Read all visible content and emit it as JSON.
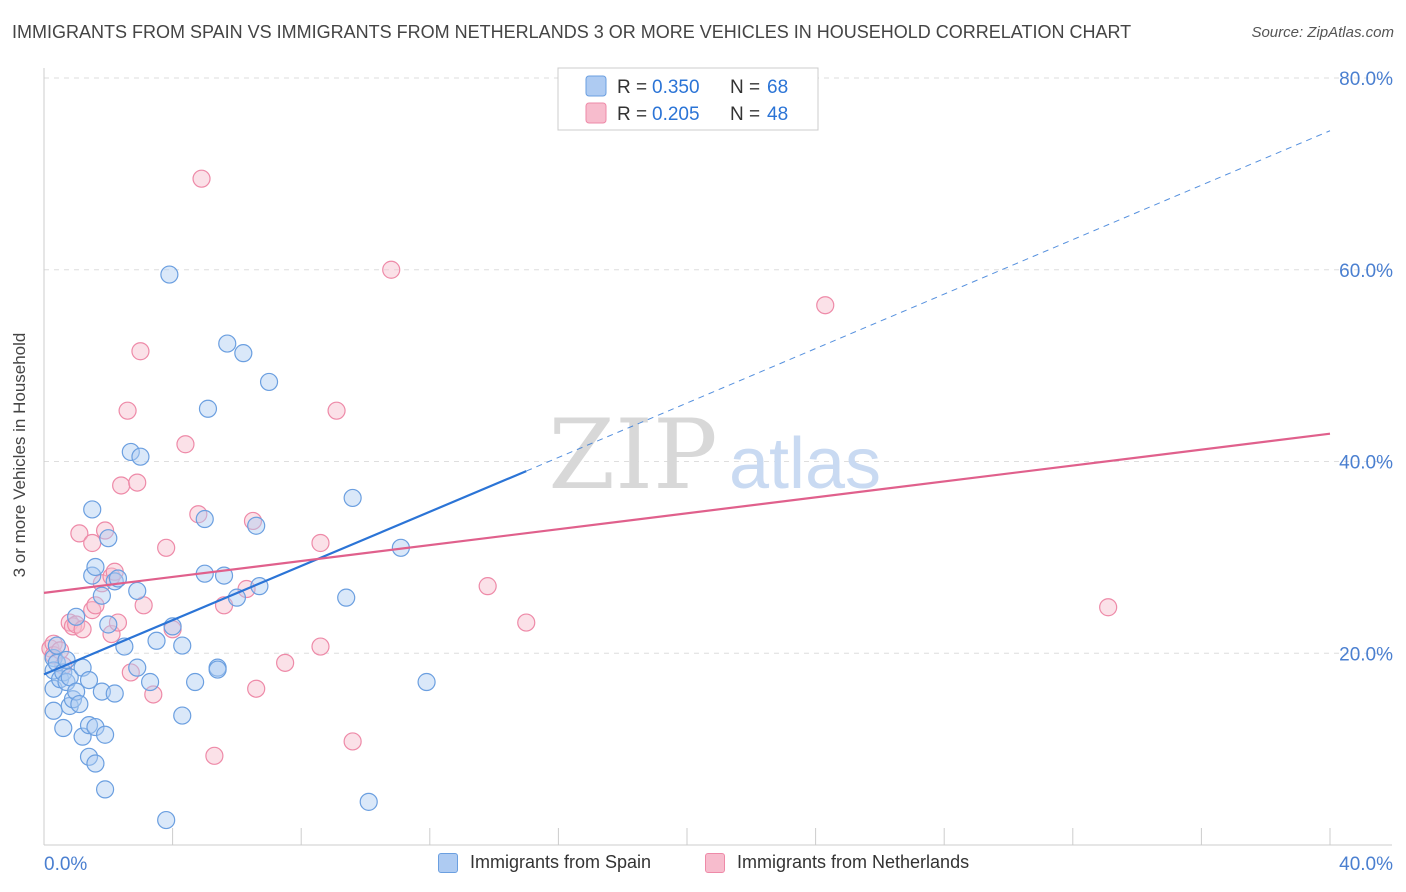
{
  "header": {
    "title": "IMMIGRANTS FROM SPAIN VS IMMIGRANTS FROM NETHERLANDS 3 OR MORE VEHICLES IN HOUSEHOLD CORRELATION CHART",
    "source": "Source: ZipAtlas.com"
  },
  "watermark": {
    "zip": "ZIP",
    "atlas": "atlas"
  },
  "colors": {
    "spain": "#6b9fe0",
    "spain_fill": "#aecbf2",
    "spain_line": "#2b74d6",
    "netherlands": "#ee8aa8",
    "netherlands_fill": "#f7bccd",
    "netherlands_line": "#e0608c",
    "axis_label": "#4a7fd0",
    "grid": "#dedede"
  },
  "chart_data": {
    "type": "scatter",
    "title": "IMMIGRANTS FROM SPAIN VS IMMIGRANTS FROM NETHERLANDS 3 OR MORE VEHICLES IN HOUSEHOLD CORRELATION CHART",
    "xlabel": "",
    "ylabel": "3 or more Vehicles in Household",
    "xlim": [
      0,
      40
    ],
    "ylim": [
      0,
      80
    ],
    "x_tick_labels": [
      "0.0%",
      "40.0%"
    ],
    "y_ticks": [
      20,
      40,
      60,
      80
    ],
    "y_tick_labels": [
      "20.0%",
      "40.0%",
      "60.0%",
      "80.0%"
    ],
    "legend": {
      "entries": [
        {
          "r_label": "R =",
          "r_value": "0.350",
          "n_label": "N =",
          "n_value": "68"
        },
        {
          "r_label": "R =",
          "r_value": "0.205",
          "n_label": "N =",
          "n_value": "48"
        }
      ]
    },
    "series": [
      {
        "name": "Immigrants from Spain",
        "trend": {
          "x0": 0.0,
          "y0": 17.8,
          "x1": 15.0,
          "y1": 39.0,
          "dashed_to_x": 40.0,
          "dashed_to_y": 74.5
        },
        "points": [
          [
            0.3,
            19.5
          ],
          [
            0.3,
            18.2
          ],
          [
            0.3,
            16.3
          ],
          [
            0.3,
            14.0
          ],
          [
            0.4,
            20.8
          ],
          [
            0.4,
            19.0
          ],
          [
            0.5,
            17.3
          ],
          [
            0.6,
            18.0
          ],
          [
            0.6,
            12.2
          ],
          [
            0.7,
            17.0
          ],
          [
            0.7,
            19.3
          ],
          [
            0.8,
            14.5
          ],
          [
            0.8,
            17.5
          ],
          [
            0.9,
            15.2
          ],
          [
            1.0,
            16.0
          ],
          [
            1.0,
            23.8
          ],
          [
            1.1,
            14.7
          ],
          [
            1.2,
            11.3
          ],
          [
            1.2,
            18.5
          ],
          [
            1.4,
            9.2
          ],
          [
            1.4,
            12.5
          ],
          [
            1.4,
            17.2
          ],
          [
            1.5,
            28.1
          ],
          [
            1.5,
            35.0
          ],
          [
            1.6,
            29.0
          ],
          [
            1.6,
            8.5
          ],
          [
            1.6,
            12.3
          ],
          [
            1.8,
            26.0
          ],
          [
            1.8,
            16.0
          ],
          [
            1.9,
            5.8
          ],
          [
            1.9,
            11.5
          ],
          [
            2.0,
            32.0
          ],
          [
            2.0,
            23.0
          ],
          [
            2.2,
            27.5
          ],
          [
            2.2,
            15.8
          ],
          [
            2.3,
            27.8
          ],
          [
            2.5,
            20.7
          ],
          [
            2.7,
            41.0
          ],
          [
            2.9,
            18.5
          ],
          [
            2.9,
            26.5
          ],
          [
            3.0,
            40.5
          ],
          [
            3.3,
            17.0
          ],
          [
            3.5,
            21.3
          ],
          [
            3.8,
            2.6
          ],
          [
            3.9,
            59.5
          ],
          [
            4.0,
            22.8
          ],
          [
            4.3,
            20.8
          ],
          [
            4.3,
            13.5
          ],
          [
            4.7,
            17.0
          ],
          [
            5.0,
            34.0
          ],
          [
            5.0,
            28.3
          ],
          [
            5.1,
            45.5
          ],
          [
            5.4,
            18.5
          ],
          [
            5.4,
            18.3
          ],
          [
            5.6,
            28.1
          ],
          [
            5.7,
            52.3
          ],
          [
            6.0,
            25.8
          ],
          [
            6.2,
            51.3
          ],
          [
            6.6,
            33.3
          ],
          [
            6.7,
            27.0
          ],
          [
            7.0,
            48.3
          ],
          [
            9.4,
            25.8
          ],
          [
            9.6,
            36.2
          ],
          [
            10.1,
            4.5
          ],
          [
            11.1,
            31.0
          ],
          [
            11.9,
            17.0
          ]
        ]
      },
      {
        "name": "Immigrants from Netherlands",
        "trend": {
          "x0": 0.0,
          "y0": 26.3,
          "x1": 40.0,
          "y1": 42.9
        },
        "points": [
          [
            0.2,
            20.5
          ],
          [
            0.3,
            21.0
          ],
          [
            0.3,
            19.8
          ],
          [
            0.5,
            20.3
          ],
          [
            0.6,
            18.7
          ],
          [
            0.8,
            23.2
          ],
          [
            0.9,
            22.8
          ],
          [
            1.0,
            23.0
          ],
          [
            1.1,
            32.5
          ],
          [
            1.2,
            22.5
          ],
          [
            1.5,
            24.5
          ],
          [
            1.5,
            31.5
          ],
          [
            1.6,
            25.0
          ],
          [
            1.8,
            27.3
          ],
          [
            1.9,
            32.8
          ],
          [
            2.1,
            28.0
          ],
          [
            2.1,
            22.0
          ],
          [
            2.2,
            28.5
          ],
          [
            2.3,
            23.2
          ],
          [
            2.4,
            37.5
          ],
          [
            2.6,
            45.3
          ],
          [
            2.7,
            18.0
          ],
          [
            2.9,
            37.8
          ],
          [
            3.0,
            51.5
          ],
          [
            3.1,
            25.0
          ],
          [
            3.4,
            15.7
          ],
          [
            3.8,
            31.0
          ],
          [
            4.0,
            22.5
          ],
          [
            4.4,
            41.8
          ],
          [
            4.8,
            34.5
          ],
          [
            4.9,
            69.5
          ],
          [
            5.3,
            9.3
          ],
          [
            5.6,
            25.0
          ],
          [
            6.3,
            26.7
          ],
          [
            6.5,
            33.8
          ],
          [
            6.6,
            16.3
          ],
          [
            7.5,
            19.0
          ],
          [
            8.6,
            31.5
          ],
          [
            8.6,
            20.7
          ],
          [
            9.1,
            45.3
          ],
          [
            9.6,
            10.8
          ],
          [
            10.8,
            60.0
          ],
          [
            13.8,
            27.0
          ],
          [
            15.0,
            23.2
          ],
          [
            24.3,
            56.3
          ],
          [
            33.1,
            24.8
          ]
        ]
      }
    ]
  }
}
